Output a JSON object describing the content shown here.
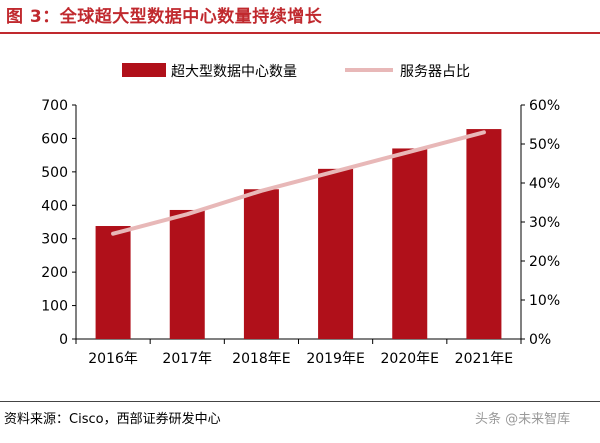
{
  "header": {
    "title": "图 3：全球超大型数据中心数量持续增长"
  },
  "footer": {
    "source": "资料来源：Cisco，西部证券研发中心",
    "watermark": "头条 @未来智库"
  },
  "chart_data": {
    "type": "bar",
    "categories": [
      "2016年",
      "2017年",
      "2018年E",
      "2019年E",
      "2020年E",
      "2021年E"
    ],
    "series": [
      {
        "name": "超大型数据中心数量",
        "type": "bar",
        "axis": "left",
        "values": [
          338,
          386,
          448,
          509,
          570,
          628
        ],
        "color": "#b0101a"
      },
      {
        "name": "服务器占比",
        "type": "line",
        "axis": "right",
        "values": [
          27,
          32,
          38,
          43,
          48,
          53
        ],
        "color": "#e8b8b8"
      }
    ],
    "yleft": {
      "min": 0,
      "max": 700,
      "step": 100,
      "ticks": [
        "0",
        "100",
        "200",
        "300",
        "400",
        "500",
        "600",
        "700"
      ]
    },
    "yright": {
      "min": 0,
      "max": 60,
      "step": 10,
      "ticks": [
        "0%",
        "10%",
        "20%",
        "30%",
        "40%",
        "50%",
        "60%"
      ]
    },
    "legend": "top",
    "grid": false
  }
}
